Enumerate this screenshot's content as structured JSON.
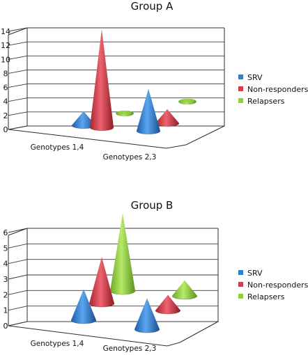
{
  "colors": {
    "SRV": "#2f7fd1",
    "Non-responders": "#d33a4a",
    "Relapsers": "#8fce3d"
  },
  "chart_data": [
    {
      "type": "bar",
      "shape": "3d-cone",
      "title": "Group A",
      "categories": [
        "Genotypes 1,4",
        "Genotypes 2,3"
      ],
      "series": [
        {
          "name": "SRV",
          "values": [
            2,
            6
          ]
        },
        {
          "name": "Non-responders",
          "values": [
            14,
            2
          ]
        },
        {
          "name": "Relapsers",
          "values": [
            0,
            0
          ]
        }
      ],
      "yticks": [
        "0",
        "2",
        "4",
        "6",
        "8",
        "10",
        "12",
        "14"
      ],
      "ylim": [
        0,
        14
      ],
      "grid": true,
      "legend": "right"
    },
    {
      "type": "bar",
      "shape": "3d-cone",
      "title": "Group B",
      "categories": [
        "Genotypes 1,4",
        "Genotypes 2,3"
      ],
      "series": [
        {
          "name": "SRV",
          "values": [
            2,
            2
          ]
        },
        {
          "name": "Non-responders",
          "values": [
            3,
            1
          ]
        },
        {
          "name": "Relapsers",
          "values": [
            5,
            1
          ]
        }
      ],
      "yticks": [
        "0",
        "1",
        "2",
        "3",
        "4",
        "5",
        "6"
      ],
      "ylim": [
        0,
        6
      ],
      "grid": true,
      "legend": "right"
    }
  ]
}
